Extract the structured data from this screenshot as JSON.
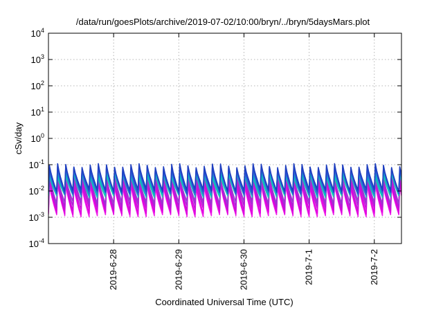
{
  "chart_data": {
    "type": "line",
    "title": "/data/run/goesPlots/archive/2019-07-02/10:00/bryn/../bryn/5daysMars.plot",
    "xlabel": "Coordinated Universal Time (UTC)",
    "ylabel": "cSv/day",
    "yscale": "log",
    "ylim": [
      0.0001,
      10000
    ],
    "xlim": [
      "2019-06-27 00:00",
      "2019-07-02 10:00"
    ],
    "y_ticks": [
      {
        "value": 0.0001,
        "base": "10",
        "exp": "-4"
      },
      {
        "value": 0.001,
        "base": "10",
        "exp": "-3"
      },
      {
        "value": 0.01,
        "base": "10",
        "exp": "-2"
      },
      {
        "value": 0.1,
        "base": "10",
        "exp": "-1"
      },
      {
        "value": 1,
        "base": "10",
        "exp": "0"
      },
      {
        "value": 10,
        "base": "10",
        "exp": "1"
      },
      {
        "value": 100,
        "base": "10",
        "exp": "2"
      },
      {
        "value": 1000,
        "base": "10",
        "exp": "3"
      },
      {
        "value": 10000,
        "base": "10",
        "exp": "4"
      }
    ],
    "x_ticks": [
      {
        "value": "2019-06-28 00:00",
        "label": "2019-6-28"
      },
      {
        "value": "2019-06-29 00:00",
        "label": "2019-6-29"
      },
      {
        "value": "2019-06-30 00:00",
        "label": "2019-6-30"
      },
      {
        "value": "2019-07-01 00:00",
        "label": "2019-7-1"
      },
      {
        "value": "2019-07-02 00:00",
        "label": "2019-7-2"
      }
    ],
    "grid": true,
    "legend": "none",
    "sawtooth_cycles_per_day": 8,
    "series": [
      {
        "color": "#1f3fbf",
        "peak": 0.11,
        "trough": 0.012
      },
      {
        "color": "#2050d8",
        "peak": 0.095,
        "trough": 0.01
      },
      {
        "color": "#3a6ad0",
        "peak": 0.08,
        "trough": 0.009
      },
      {
        "color": "#00b8c8",
        "peak": 0.06,
        "trough": 0.008
      },
      {
        "color": "#18c8b0",
        "peak": 0.05,
        "trough": 0.007
      },
      {
        "color": "#9a3ad0",
        "peak": 0.045,
        "trough": 0.004
      },
      {
        "color": "#b020d8",
        "peak": 0.04,
        "trough": 0.003
      },
      {
        "color": "#cc10d8",
        "peak": 0.032,
        "trough": 0.0022
      },
      {
        "color": "#e000e0",
        "peak": 0.025,
        "trough": 0.0016
      },
      {
        "color": "#f020e8",
        "peak": 0.02,
        "trough": 0.0013
      }
    ]
  }
}
